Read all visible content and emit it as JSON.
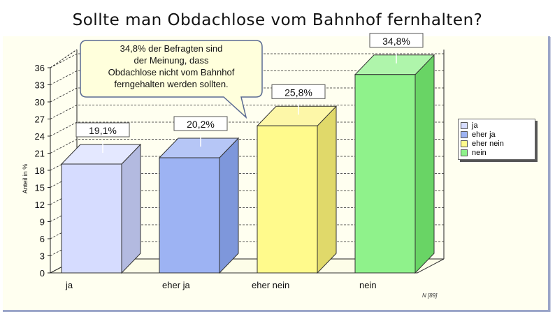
{
  "chart_data": {
    "type": "bar",
    "style": "3d",
    "title": "Sollte man Obdachlose vom Bahnhof fernhalten?",
    "ylabel": "Anteil in %",
    "xlabel": "",
    "categories": [
      "ja",
      "eher ja",
      "eher nein",
      "nein"
    ],
    "values": [
      19.1,
      20.2,
      25.8,
      34.8
    ],
    "data_labels": [
      "19,1%",
      "20,2%",
      "25,8%",
      "34,8%"
    ],
    "ylim": [
      0,
      36
    ],
    "yticks": [
      0,
      3,
      6,
      9,
      12,
      15,
      18,
      21,
      24,
      27,
      30,
      33,
      36
    ],
    "grid": true,
    "legend_position": "right",
    "legend": [
      {
        "label": "ja",
        "color": "#d6dcff"
      },
      {
        "label": "eher ja",
        "color": "#9db3f3"
      },
      {
        "label": "eher nein",
        "color": "#fffa8c"
      },
      {
        "label": "nein",
        "color": "#8ff28b"
      }
    ],
    "colors": {
      "front": [
        "#d6dcff",
        "#9db3f3",
        "#fffa8c",
        "#8ff28b"
      ],
      "side": [
        "#b3bae0",
        "#7e97db",
        "#e0d96a",
        "#69d465"
      ],
      "top": [
        "#e4e8ff",
        "#b6c6f6",
        "#fdf7a8",
        "#aff5ab"
      ]
    },
    "annotation": "34,8% der Befragten sind der Meinung, dass Obdachlose nicht vom Bahnhof ferngehalten werden sollten.",
    "annotation_lines": [
      "34,8% der Befragten sind",
      "der Meinung, dass",
      "Obdachlose nicht vom Bahnhof",
      "ferngehalten werden sollten."
    ],
    "note": "N [89]"
  }
}
